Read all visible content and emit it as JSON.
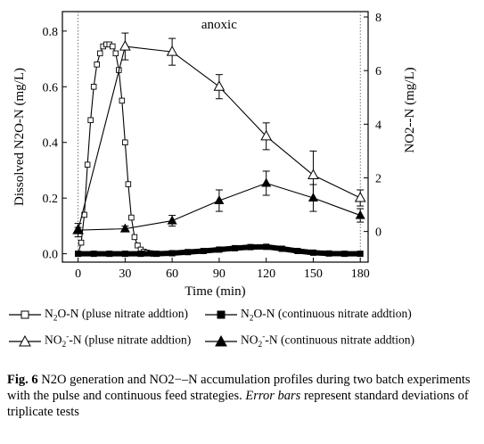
{
  "chart_data": {
    "type": "line",
    "annotation": "anoxic",
    "xlabel": "Time (min)",
    "ylabel_left": "Dissolved N2O-N (mg/L)",
    "ylabel_right": "NO2--N (mg/L)",
    "xlim": [
      -10,
      185
    ],
    "ylim_left": [
      -0.03,
      0.87
    ],
    "ylim_right": [
      -1.143,
      8.2
    ],
    "x_ticks": [
      0,
      30,
      60,
      90,
      120,
      150,
      180
    ],
    "y_left_ticks": [
      0.0,
      0.2,
      0.4,
      0.6,
      0.8
    ],
    "y_right_ticks": [
      0,
      2,
      4,
      6,
      8
    ],
    "vlines_x": [
      0,
      180
    ],
    "series": [
      {
        "name": "N2O-N (pluse nitrate addtion)",
        "axis": "left",
        "marker": "open-square",
        "x": [
          0,
          2,
          4,
          6,
          8,
          10,
          12,
          14,
          16,
          18,
          20,
          22,
          24,
          26,
          28,
          30,
          32,
          34,
          36,
          38,
          40,
          42,
          44,
          46,
          48
        ],
        "y": [
          0.0,
          0.04,
          0.14,
          0.32,
          0.48,
          0.6,
          0.68,
          0.72,
          0.745,
          0.752,
          0.752,
          0.745,
          0.72,
          0.66,
          0.55,
          0.4,
          0.25,
          0.13,
          0.06,
          0.03,
          0.015,
          0.007,
          0.004,
          0.002,
          0.0
        ]
      },
      {
        "name": "N2O-N (continuous nitrate addtion)",
        "axis": "left",
        "marker": "filled-square",
        "x": [
          0,
          10,
          20,
          30,
          40,
          50,
          60,
          70,
          80,
          90,
          100,
          110,
          120,
          130,
          140,
          150,
          160,
          170,
          180
        ],
        "y": [
          0.0,
          0.0,
          0.0,
          0.0,
          0.0,
          0.0,
          0.002,
          0.006,
          0.01,
          0.015,
          0.02,
          0.024,
          0.025,
          0.018,
          0.01,
          0.004,
          0.001,
          0.0,
          0.0
        ]
      },
      {
        "name": "NO2--N (pluse nitrate addtion)",
        "axis": "right",
        "marker": "open-triangle",
        "x": [
          0,
          30,
          60,
          90,
          120,
          150,
          180
        ],
        "y": [
          0.05,
          6.9,
          6.7,
          5.4,
          3.55,
          2.1,
          1.25
        ],
        "err": [
          0.25,
          0.5,
          0.5,
          0.45,
          0.5,
          0.9,
          0.3
        ]
      },
      {
        "name": "NO2--N (continuous nitrate addtion)",
        "axis": "right",
        "marker": "filled-triangle",
        "x": [
          0,
          30,
          60,
          90,
          120,
          150,
          180
        ],
        "y": [
          0.05,
          0.1,
          0.4,
          1.15,
          1.8,
          1.25,
          0.6
        ],
        "err": [
          0.1,
          0.1,
          0.2,
          0.4,
          0.45,
          0.5,
          0.25
        ]
      }
    ]
  },
  "legend": [
    {
      "symbol": "open-square",
      "pre": "N",
      "sub": "2",
      "mid": "O-N",
      "sup": "",
      "post": " (pluse nitrate addtion)"
    },
    {
      "symbol": "filled-square",
      "pre": "N",
      "sub": "2",
      "mid": "O-N",
      "sup": "",
      "post": " (continuous nitrate addtion)"
    },
    {
      "symbol": "open-triangle",
      "pre": "NO",
      "sub": "2",
      "mid": "",
      "sup": "-",
      "post": "-N (pluse nitrate addtion)"
    },
    {
      "symbol": "filled-triangle",
      "pre": "NO",
      "sub": "2",
      "mid": "",
      "sup": "-",
      "post": "-N (continuous nitrate addtion)"
    }
  ],
  "caption": {
    "label": "Fig. 6",
    "text": " N2O generation and NO2−–N accumulation profiles during two batch experiments with the pulse and continuous feed strategies. ",
    "italic": "Error bars",
    "tail": " represent standard deviations of triplicate tests"
  }
}
